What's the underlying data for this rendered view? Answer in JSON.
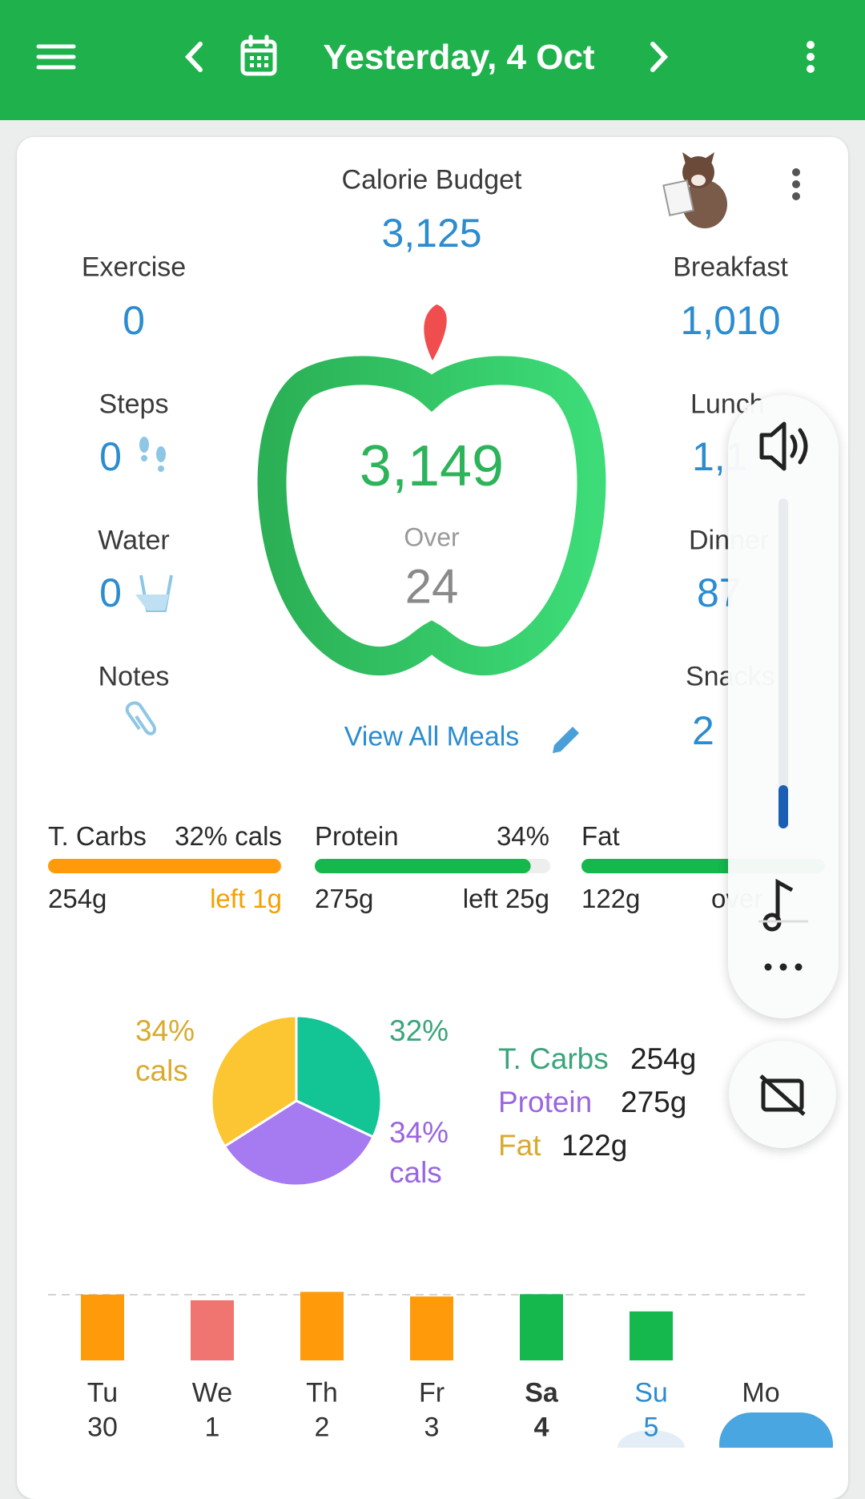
{
  "header": {
    "title": "Yesterday, 4 Oct"
  },
  "summary": {
    "calorie_budget": {
      "label": "Calorie Budget",
      "value": "3,125"
    },
    "exercise": {
      "label": "Exercise",
      "value": "0"
    },
    "steps": {
      "label": "Steps",
      "value": "0"
    },
    "water": {
      "label": "Water",
      "value": "0"
    },
    "notes": {
      "label": "Notes"
    }
  },
  "apple": {
    "total": "3,149",
    "status": "Over",
    "difference": "24"
  },
  "view_all_meals": "View All Meals",
  "meals": [
    {
      "label": "Breakfast",
      "value": "1,010"
    },
    {
      "label": "Lunch",
      "value": "1,1"
    },
    {
      "label": "Dinner",
      "value": "87"
    },
    {
      "label": "Snacks",
      "value": "2"
    }
  ],
  "macros": [
    {
      "name": "T. Carbs",
      "percent": "32% cals",
      "amount": "254g",
      "remaining": "left 1g",
      "progress": 99.6,
      "color": "#ff9a0a"
    },
    {
      "name": "Protein",
      "percent": "34%",
      "amount": "275g",
      "remaining": "left 25g",
      "progress": 91.7,
      "color": "#14b84d"
    },
    {
      "name": "Fat",
      "amount": "122g",
      "remaining": "over",
      "progress": 100,
      "color": "#14b84d"
    }
  ],
  "macro_pie": {
    "type": "pie",
    "categories": [
      "T. Carbs",
      "Protein",
      "Fat"
    ],
    "values": [
      32,
      34,
      34
    ],
    "value_labels": [
      "32%",
      "34%",
      "34%"
    ],
    "label_suffix": "cals",
    "amounts": [
      "254g",
      "275g",
      "122g"
    ],
    "colors": [
      "#13c495",
      "#a67af0",
      "#fcc633"
    ]
  },
  "weekly_chart": {
    "type": "bar",
    "days": [
      "Tu",
      "We",
      "Th",
      "Fr",
      "Sa",
      "Su",
      "Mo"
    ],
    "dates": [
      "30",
      "1",
      "2",
      "3",
      "4",
      "5",
      null
    ],
    "values": [
      3130,
      2860,
      3260,
      3040,
      3149,
      2330,
      null
    ],
    "colors": [
      "#ff9a0a",
      "#f07470",
      "#ff9a0a",
      "#ff9a0a",
      "#14b84d",
      "#14b84d",
      null
    ],
    "reference": 3125,
    "selected": 4,
    "today": 5
  }
}
